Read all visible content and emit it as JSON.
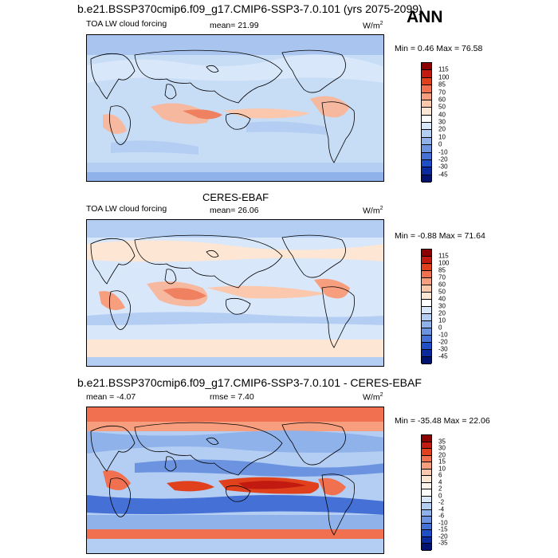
{
  "season": "ANN",
  "panels": [
    {
      "title": "b.e21.BSSP370cmip6.f09_g17.CMIP6-SSP3-7.0.101 (yrs 2075-2099)",
      "variable": "TOA LW cloud forcing",
      "mean_text": "mean=  21.99",
      "units": "W/m",
      "units_sup": "2",
      "minmax": "Min =  0.46 Max = 76.58",
      "legend_labels": [
        "115",
        "100",
        "85",
        "70",
        "60",
        "50",
        "40",
        "30",
        "20",
        "10",
        "0",
        "-10",
        "-20",
        "-30",
        "-45"
      ],
      "legend_colors": [
        "#8b0000",
        "#c21a10",
        "#e0401c",
        "#f07050",
        "#f79e7e",
        "#fbc8ae",
        "#fde6d3",
        "#ffffff",
        "#d9e7fb",
        "#b4cef3",
        "#8fb2ea",
        "#6b93e0",
        "#4571d6",
        "#1f4ec5",
        "#0a2a9e",
        "#001270"
      ]
    },
    {
      "title": "CERES-EBAF",
      "variable": "TOA LW cloud forcing",
      "mean_text": "mean=  26.06",
      "units": "W/m",
      "units_sup": "2",
      "minmax": "Min =  -0.88 Max = 71.64",
      "legend_labels": [
        "115",
        "100",
        "85",
        "70",
        "60",
        "50",
        "40",
        "30",
        "20",
        "10",
        "0",
        "-10",
        "-20",
        "-30",
        "-45"
      ],
      "legend_colors": [
        "#8b0000",
        "#c21a10",
        "#e0401c",
        "#f07050",
        "#f79e7e",
        "#fbc8ae",
        "#fde6d3",
        "#ffffff",
        "#d9e7fb",
        "#b4cef3",
        "#8fb2ea",
        "#6b93e0",
        "#4571d6",
        "#1f4ec5",
        "#0a2a9e",
        "#001270"
      ]
    },
    {
      "title": "b.e21.BSSP370cmip6.f09_g17.CMIP6-SSP3-7.0.101 - CERES-EBAF",
      "mean_text": "mean =  -4.07",
      "rmse_text": "rmse =  7.40",
      "units": "W/m",
      "units_sup": "2",
      "minmax": "Min = -35.48 Max = 22.06",
      "legend_labels": [
        "35",
        "30",
        "20",
        "15",
        "10",
        "6",
        "4",
        "2",
        "0",
        "-2",
        "-4",
        "-6",
        "-10",
        "-15",
        "-20",
        "-35"
      ],
      "legend_colors": [
        "#8b0000",
        "#c21a10",
        "#e0401c",
        "#f07050",
        "#f79e7e",
        "#fbc8ae",
        "#fde6d3",
        "#fff4ec",
        "#ffffff",
        "#d9e7fb",
        "#b4cef3",
        "#8fb2ea",
        "#6b93e0",
        "#4571d6",
        "#1f4ec5",
        "#0a2a9e",
        "#001270"
      ]
    }
  ]
}
